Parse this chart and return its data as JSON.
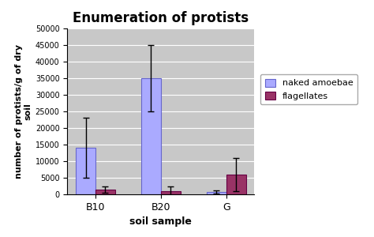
{
  "title": "Enumeration of protists",
  "xlabel": "soil sample",
  "ylabel": "number of protists/g of dry\nsoil",
  "categories": [
    "B10",
    "B20",
    "G"
  ],
  "naked_amoebae": [
    14000,
    35000,
    800
  ],
  "naked_amoebae_err": [
    9000,
    10000,
    500
  ],
  "flagellates": [
    1500,
    1000,
    6000
  ],
  "flagellates_err": [
    1000,
    1500,
    5000
  ],
  "color_naked": "#aaaaff",
  "color_flagellates": "#993366",
  "ylim": [
    0,
    50000
  ],
  "yticks": [
    0,
    5000,
    10000,
    15000,
    20000,
    25000,
    30000,
    35000,
    40000,
    45000,
    50000
  ],
  "legend_labels": [
    "naked amoebae",
    "flagellates"
  ],
  "figure_background": "#ffffff",
  "plot_background": "#c8c8c8",
  "bar_width": 0.3,
  "figsize": [
    4.74,
    3.0
  ],
  "dpi": 100
}
